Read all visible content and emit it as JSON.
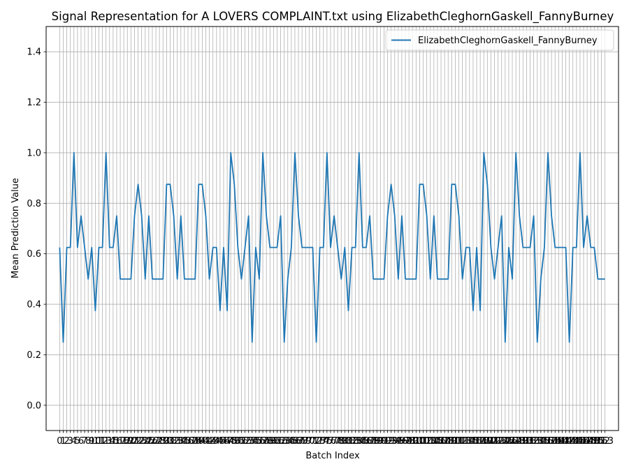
{
  "chart_data": {
    "type": "line",
    "title": "Signal Representation for A LOVERS COMPLAINT.txt using ElizabethCleghornGaskell_FannyBurney",
    "xlabel": "Batch Index",
    "ylabel": "Mean Prediction Value",
    "xlim": [
      -3.8,
      156.8
    ],
    "ylim": [
      -0.1,
      1.5
    ],
    "yticks": [
      0.0,
      0.2,
      0.4,
      0.6,
      0.8,
      1.0,
      1.2,
      1.4
    ],
    "ytick_labels": [
      "0.0",
      "0.2",
      "0.4",
      "0.6",
      "0.8",
      "1.0",
      "1.2",
      "1.4"
    ],
    "grid": true,
    "legend_position": "upper right",
    "series": [
      {
        "name": "ElizabethCleghornGaskell_FannyBurney",
        "color": "#1f77b4",
        "x": [
          0,
          1,
          2,
          3,
          4,
          5,
          6,
          7,
          8,
          9,
          10,
          11,
          12,
          13,
          14,
          15,
          16,
          17,
          18,
          19,
          20,
          21,
          22,
          23,
          24,
          25,
          26,
          27,
          28,
          29,
          30,
          31,
          32,
          33,
          34,
          35,
          36,
          37,
          38,
          39,
          40,
          41,
          42,
          43,
          44,
          45,
          46,
          47,
          48,
          49,
          50,
          51,
          52,
          53,
          54,
          55,
          56,
          57,
          58,
          59,
          60,
          61,
          62,
          63,
          64,
          65,
          66,
          67,
          68,
          69,
          70,
          71,
          72,
          73,
          74,
          75,
          76,
          77,
          78,
          79,
          80,
          81,
          82,
          83,
          84,
          85,
          86,
          87,
          88,
          89,
          90,
          91,
          92,
          93,
          94,
          95,
          96,
          97,
          98,
          99,
          100,
          101,
          102,
          103,
          104,
          105,
          106,
          107,
          108,
          109,
          110,
          111,
          112,
          113,
          114,
          115,
          116,
          117,
          118,
          119,
          120,
          121,
          122,
          123,
          124,
          125,
          126,
          127,
          128,
          129,
          130,
          131,
          132,
          133,
          134,
          135,
          136,
          137,
          138,
          139,
          140,
          141,
          142,
          143,
          144,
          145,
          146,
          147,
          148,
          149,
          150,
          151,
          152,
          153
        ],
        "values": [
          0.625,
          0.25,
          0.625,
          0.625,
          1.0,
          0.625,
          0.75,
          0.625,
          0.5,
          0.625,
          0.375,
          0.625,
          0.625,
          1.0,
          0.625,
          0.625,
          0.75,
          0.5,
          0.5,
          0.5,
          0.5,
          0.75,
          0.875,
          0.75,
          0.5,
          0.75,
          0.5,
          0.5,
          0.5,
          0.5,
          0.875,
          0.875,
          0.75,
          0.5,
          0.75,
          0.5,
          0.5,
          0.5,
          0.5,
          0.875,
          0.875,
          0.75,
          0.5,
          0.625,
          0.625,
          0.375,
          0.625,
          0.375,
          1.0,
          0.875,
          0.625,
          0.5,
          0.625,
          0.75,
          0.25,
          0.625,
          0.5,
          1.0,
          0.75,
          0.625,
          0.625,
          0.625,
          0.75,
          0.25,
          0.5,
          0.625,
          1.0,
          0.75,
          0.625,
          0.625,
          0.625,
          0.625,
          0.25,
          0.625,
          0.625,
          1.0,
          0.625,
          0.75,
          0.625,
          0.5,
          0.625,
          0.375,
          0.625,
          0.625,
          1.0,
          0.625,
          0.625,
          0.75,
          0.5,
          0.5,
          0.5,
          0.5,
          0.75,
          0.875,
          0.75,
          0.5,
          0.75,
          0.5,
          0.5,
          0.5,
          0.5,
          0.875,
          0.875,
          0.75,
          0.5,
          0.75,
          0.5,
          0.5,
          0.5,
          0.5,
          0.875,
          0.875,
          0.75,
          0.5,
          0.625,
          0.625,
          0.375,
          0.625,
          0.375,
          1.0,
          0.875,
          0.625,
          0.5,
          0.625,
          0.75,
          0.25,
          0.625,
          0.5,
          1.0,
          0.75,
          0.625,
          0.625,
          0.625,
          0.75,
          0.25,
          0.5,
          0.625,
          1.0,
          0.75,
          0.625,
          0.625,
          0.625,
          0.625,
          0.25,
          0.625,
          0.625,
          1.0,
          0.625,
          0.75,
          0.625,
          0.625,
          0.5,
          0.5,
          0.5
        ]
      }
    ]
  }
}
